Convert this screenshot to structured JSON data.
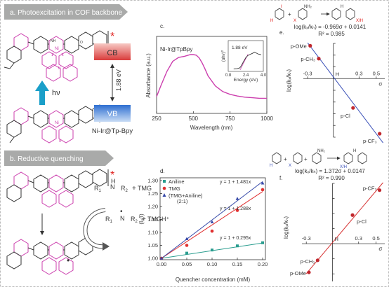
{
  "panels": {
    "a": {
      "label": "a. Photoexcitation in COF backbone",
      "cb": "CB",
      "vb": "VB",
      "gap": "1.88 eV",
      "hv": "hν",
      "material": "Ni-Ir@Tp-Bpy",
      "star": "*",
      "ir": "Ir",
      "ni": "Ni",
      "nh": "NH",
      "ring_o": "O",
      "ring_n": "N"
    },
    "b": {
      "label": "b. Reductive quenching",
      "reagent": "TMG",
      "radical_cation": "TMGH⁺",
      "r1": "R",
      "r2": "R",
      "sub1": "1",
      "sub2": "2",
      "n": "N",
      "h": "H",
      "dot": "•",
      "plus": "+",
      "star": "*"
    },
    "c": {
      "label": "c.",
      "title": "Ni-Ir@TpBpy",
      "xlabel": "Wavelength (nm)",
      "ylabel": "Absorbance (a.u.)",
      "inset": {
        "value": "1.88 eV",
        "xlabel": "Energy (eV)",
        "ylabel": "(αhv)",
        "ylabel_exp": "2"
      }
    },
    "d": {
      "label": "d.",
      "xlabel": "Quencher concentration (mM)",
      "ylabel": "(I₀/I)",
      "fits": [
        "y = 1 + 1.481x",
        "y = 1 + 1.288x",
        "y = 1 + 0.295x"
      ],
      "legend_note": "(2:1)"
    },
    "e": {
      "label": "e.",
      "eq": "log(kₓ/kₕ) = -0.969σ + 0.0141",
      "r2": "R² = 0.985",
      "xlabel": "σ",
      "ylabel": "log(kₓ/kₕ)",
      "points": [
        "p-OMe",
        "p-CH₃",
        "H",
        "p-Cl",
        "p-CF₃"
      ],
      "scheme": {
        "i": "I",
        "x": "X",
        "h": "H",
        "nh2": "NH₂",
        "xh": "X/H",
        "plus": "+"
      }
    },
    "f": {
      "label": "f.",
      "eq": "log(kₓ/kₕ) = 1.372σ + 0.0147",
      "r2": "R² = 0.990",
      "xlabel": "σ",
      "ylabel": "log(kₓ/kₕ)",
      "points": [
        "p-OMe",
        "p-CH₃",
        "H",
        "p-Cl",
        "p-CF₃"
      ],
      "scheme": {
        "i": "I",
        "x": "X",
        "h": "H",
        "nh2": "NH₂",
        "xh": "X/H",
        "plus": "+"
      }
    }
  },
  "colors": {
    "cb": "#d93b3b",
    "vb": "#2f6fd1",
    "arrow": "#1a9fc9",
    "magenta": "#cc3fae",
    "star": "#e0201e",
    "aniline": "#2a9d8f",
    "tmg": "#e03131",
    "combo": "#3548a8",
    "hammett_e": "#3a50b8",
    "hammett_f": "#d73535",
    "points": "#c0272d",
    "banner": "#a9aaa9"
  },
  "chart_data": [
    {
      "type": "line",
      "panel": "c",
      "title": "Ni-Ir@TpBpy",
      "xlabel": "Wavelength (nm)",
      "ylabel": "Absorbance (a.u.)",
      "xlim": [
        250,
        1000
      ],
      "xticks": [
        250,
        500,
        750,
        1000
      ],
      "x": [
        250,
        280,
        320,
        360,
        400,
        440,
        480,
        500,
        520,
        540,
        560,
        580,
        600,
        650,
        700,
        750,
        800,
        850,
        900,
        950,
        1000
      ],
      "values": [
        0.25,
        0.45,
        0.7,
        0.88,
        0.95,
        0.97,
        1.0,
        1.0,
        0.99,
        0.94,
        0.85,
        0.74,
        0.62,
        0.44,
        0.34,
        0.29,
        0.26,
        0.24,
        0.23,
        0.22,
        0.22
      ],
      "inset": {
        "xlabel": "Energy (eV)",
        "ylabel": "(αhv)²",
        "xlim": [
          0.8,
          4.0
        ],
        "xticks": [
          0.8,
          2.4,
          4.0
        ],
        "annotation": "1.88 eV",
        "x": [
          1.3,
          1.6,
          1.8,
          1.9,
          2.0,
          2.2,
          2.4,
          2.6,
          2.8,
          3.0,
          3.2,
          3.5,
          3.8
        ],
        "values": [
          0.05,
          0.06,
          0.08,
          0.12,
          0.2,
          0.38,
          0.55,
          0.65,
          0.7,
          0.74,
          0.8,
          0.72,
          0.68
        ]
      }
    },
    {
      "type": "scatter",
      "panel": "d",
      "xlabel": "Quencher concentration (mM)",
      "ylabel": "(I₀/I)",
      "xlim": [
        0,
        0.2
      ],
      "ylim": [
        1.0,
        1.3
      ],
      "xticks": [
        0.0,
        0.05,
        0.1,
        0.15,
        0.2
      ],
      "yticks": [
        1.0,
        1.05,
        1.1,
        1.15,
        1.2,
        1.25,
        1.3
      ],
      "series": [
        {
          "name": "Aniline",
          "x": [
            0,
            0.05,
            0.1,
            0.15,
            0.2
          ],
          "values": [
            1.0,
            1.02,
            1.032,
            1.048,
            1.06
          ],
          "fit": "y = 1 + 0.295x",
          "slope": 0.295
        },
        {
          "name": "TMG",
          "x": [
            0,
            0.05,
            0.1,
            0.15,
            0.2
          ],
          "values": [
            1.0,
            1.05,
            1.105,
            1.185,
            1.265
          ],
          "fit": "y = 1 + 1.288x",
          "slope": 1.288
        },
        {
          "name": "(TMG+Aniline)",
          "x": [
            0,
            0.05,
            0.1,
            0.15,
            0.2
          ],
          "values": [
            1.0,
            1.075,
            1.14,
            1.23,
            1.29
          ],
          "fit": "y = 1 + 1.481x",
          "slope": 1.481
        }
      ]
    },
    {
      "type": "scatter",
      "panel": "e",
      "xlabel": "σ",
      "ylabel": "log(kₓ/kₕ)",
      "xlim": [
        -0.35,
        0.6
      ],
      "ylim": [
        -0.5,
        0.3
      ],
      "xticks": [
        -0.3,
        0.0,
        0.3,
        0.5
      ],
      "yticks": [
        -0.5,
        -0.4,
        -0.3,
        -0.2,
        -0.1,
        0.0,
        0.1,
        0.2,
        0.3
      ],
      "points": [
        {
          "label": "p-OMe",
          "x": -0.27,
          "y": 0.28
        },
        {
          "label": "p-CH₃",
          "x": -0.17,
          "y": 0.17
        },
        {
          "label": "H",
          "x": 0.0,
          "y": 0.0
        },
        {
          "label": "p-Cl",
          "x": 0.23,
          "y": -0.25
        },
        {
          "label": "p-CF₃",
          "x": 0.54,
          "y": -0.47
        }
      ],
      "fit": {
        "slope": -0.969,
        "intercept": 0.0141,
        "r2": 0.985
      }
    },
    {
      "type": "scatter",
      "panel": "f",
      "xlabel": "σ",
      "ylabel": "log(kₓ/kₕ)",
      "xlim": [
        -0.35,
        0.6
      ],
      "ylim": [
        -0.5,
        0.8
      ],
      "xticks": [
        -0.3,
        0.0,
        0.3,
        0.5
      ],
      "yticks": [
        -0.4,
        -0.2,
        0.0,
        0.2,
        0.4,
        0.6,
        0.8
      ],
      "points": [
        {
          "label": "p-OMe",
          "x": -0.27,
          "y": -0.38
        },
        {
          "label": "p-CH₃",
          "x": -0.17,
          "y": -0.22
        },
        {
          "label": "H",
          "x": 0.0,
          "y": 0.0
        },
        {
          "label": "p-Cl",
          "x": 0.23,
          "y": 0.38
        },
        {
          "label": "p-CF₃",
          "x": 0.54,
          "y": 0.71
        }
      ],
      "fit": {
        "slope": 1.372,
        "intercept": 0.0147,
        "r2": 0.99
      }
    }
  ]
}
